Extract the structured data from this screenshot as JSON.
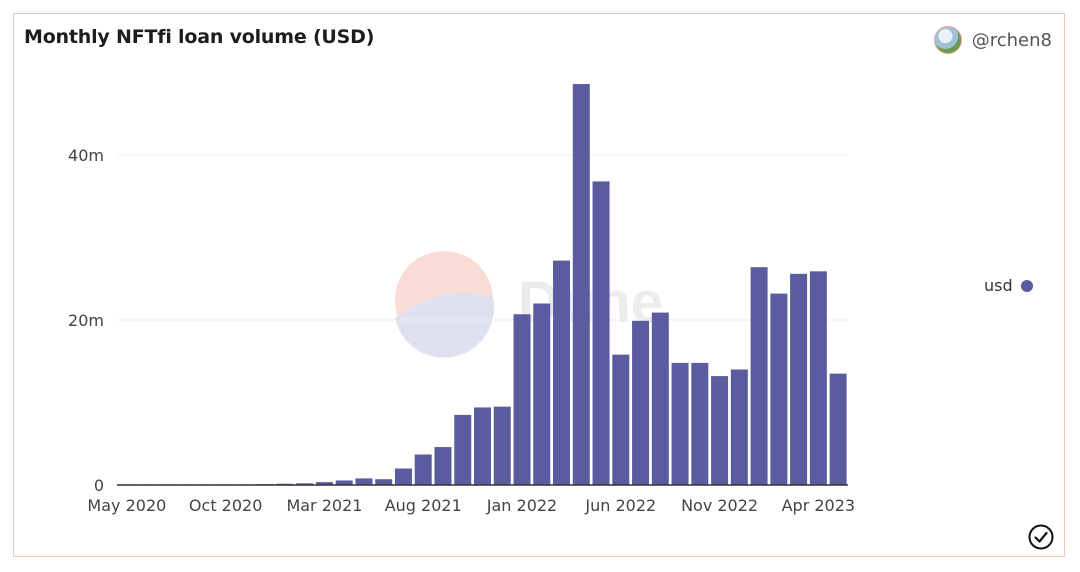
{
  "header": {
    "title": "Monthly NFTfi loan volume (USD)",
    "author": "@rchen8"
  },
  "icons": {
    "avatar": "user-avatar",
    "status": "check-circle-icon",
    "watermark": "dune-logo"
  },
  "watermark_text": "Dune",
  "colors": {
    "bar": "#5b5b9f",
    "border": "#f3c3bd",
    "grid": "#eeeeee"
  },
  "chart_data": {
    "type": "bar",
    "categories": [
      "May 2020",
      "Jun 2020",
      "Jul 2020",
      "Aug 2020",
      "Sep 2020",
      "Oct 2020",
      "Nov 2020",
      "Dec 2020",
      "Jan 2021",
      "Feb 2021",
      "Mar 2021",
      "Apr 2021",
      "May 2021",
      "Jun 2021",
      "Jul 2021",
      "Aug 2021",
      "Sep 2021",
      "Oct 2021",
      "Nov 2021",
      "Dec 2021",
      "Jan 2022",
      "Feb 2022",
      "Mar 2022",
      "Apr 2022",
      "May 2022",
      "Jun 2022",
      "Jul 2022",
      "Aug 2022",
      "Sep 2022",
      "Oct 2022",
      "Nov 2022",
      "Dec 2022",
      "Jan 2023",
      "Feb 2023",
      "Mar 2023",
      "Apr 2023",
      "May 2023"
    ],
    "x_tick_labels": [
      "May 2020",
      "Oct 2020",
      "Mar 2021",
      "Aug 2021",
      "Jan 2022",
      "Jun 2022",
      "Nov 2022",
      "Apr 2023"
    ],
    "x_tick_indices": [
      0,
      5,
      10,
      15,
      20,
      25,
      30,
      35
    ],
    "series": [
      {
        "name": "usd",
        "values": [
          0.02,
          0.03,
          0.03,
          0.04,
          0.05,
          0.05,
          0.06,
          0.1,
          0.15,
          0.2,
          0.35,
          0.55,
          0.8,
          0.7,
          2.0,
          3.7,
          4.6,
          8.5,
          9.4,
          9.5,
          20.7,
          22.0,
          27.2,
          48.6,
          36.8,
          15.8,
          19.9,
          20.9,
          14.8,
          14.8,
          13.2,
          14.0,
          26.4,
          23.2,
          25.6,
          25.9,
          13.5
        ]
      }
    ],
    "y_ticks": [
      0,
      20,
      40
    ],
    "y_tick_labels": [
      "0",
      "20m",
      "40m"
    ],
    "ylim": [
      0,
      50
    ],
    "xlabel": "",
    "ylabel": "",
    "grid": true,
    "legend_position": "right"
  }
}
